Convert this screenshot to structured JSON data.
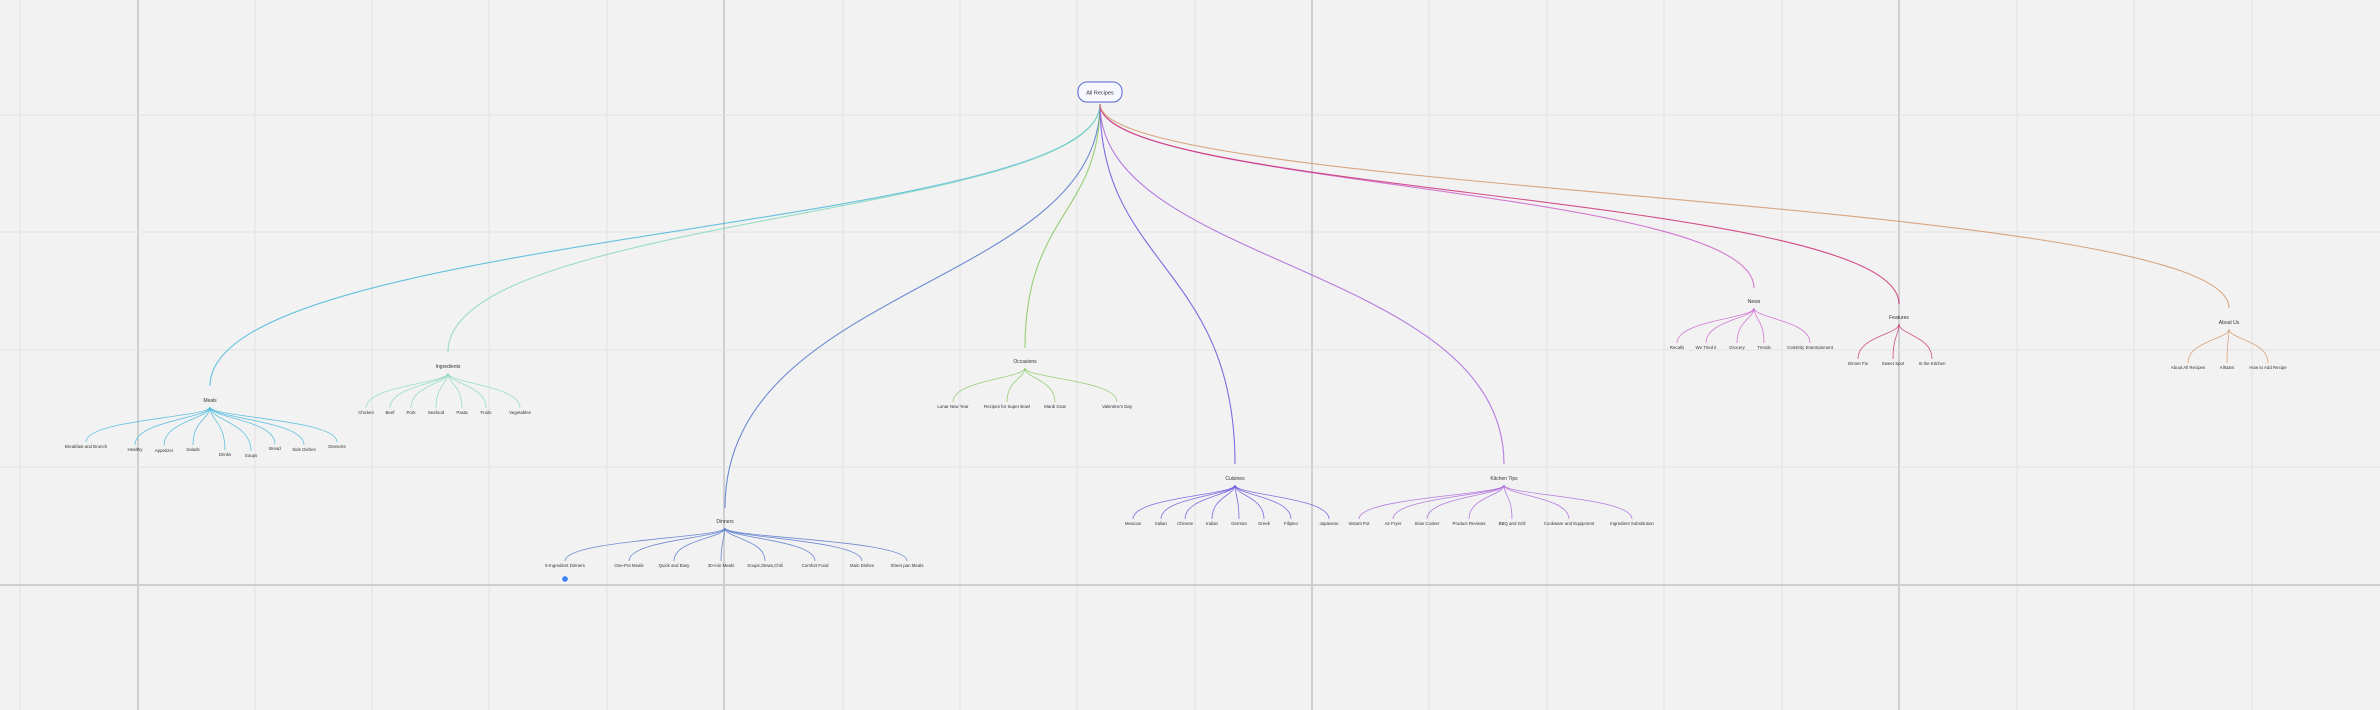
{
  "mindmap": {
    "root": {
      "label": "All Recipes"
    },
    "branches": [
      {
        "id": "meals",
        "label": "Meals",
        "color": "#4ab8dc",
        "children": [
          "Breakfast and Brunch",
          "Healthy",
          "Appetizer",
          "Salads",
          "Drinks",
          "Soups",
          "Bread",
          "Side Dishes",
          "Desserts"
        ]
      },
      {
        "id": "ingredients",
        "label": "Ingredients",
        "color": "#8ad8c0",
        "children": [
          "Chicken",
          "Beef",
          "Pork",
          "Seafood",
          "Pasta",
          "Fruits",
          "Vegetables"
        ]
      },
      {
        "id": "dinners",
        "label": "Dinners",
        "color": "#5577cc",
        "children": [
          "5-Ingredient Dinners",
          "One-Pot Meals",
          "Quick and Easy",
          "30-min Meals",
          "Soups,Stews,Chili",
          "Comfort Food",
          "Main Dishes",
          "Sheet pan Meals"
        ]
      },
      {
        "id": "occasions",
        "label": "Occasions",
        "color": "#88c860",
        "children": [
          "Lunar New Year",
          "Recipes for Super Bowl",
          "Mardi Gras",
          "Valentine's Day"
        ]
      },
      {
        "id": "cuisines",
        "label": "Cuisines",
        "color": "#6a55dd",
        "children": [
          "Mexican",
          "Italian",
          "Chinese",
          "Indian",
          "German",
          "Greek",
          "Filipino",
          "Japanese"
        ]
      },
      {
        "id": "kitchen-tips",
        "label": "Kitchen Tips",
        "color": "#aa66dd",
        "children": [
          "Instant Pot",
          "Air Fryer",
          "Slow Cooker",
          "Product Reviews",
          "BBQ and Grill",
          "Cookware and Equipment",
          "Ingredient Substitution"
        ]
      },
      {
        "id": "news",
        "label": "News",
        "color": "#cc66cc",
        "children": [
          "Recalls",
          "We Tried it",
          "Grocery",
          "Trends",
          "Celebrity Entertainment"
        ]
      },
      {
        "id": "features",
        "label": "Features",
        "color": "#cc3377",
        "children": [
          "Dinner Fix",
          "Sweet Spot",
          "In the Kitchen"
        ]
      },
      {
        "id": "about-us",
        "label": "About Us",
        "color": "#d4966a",
        "children": [
          "About All Recipes",
          "Allstars",
          "How to Add Recipe"
        ]
      }
    ]
  },
  "colors": {
    "background": "#f2f2f2",
    "grid_minor": "#e2e2e2",
    "grid_major": "#cfcfcf",
    "root_border": "#5566cc",
    "selection_handle": "#3b82f6"
  }
}
